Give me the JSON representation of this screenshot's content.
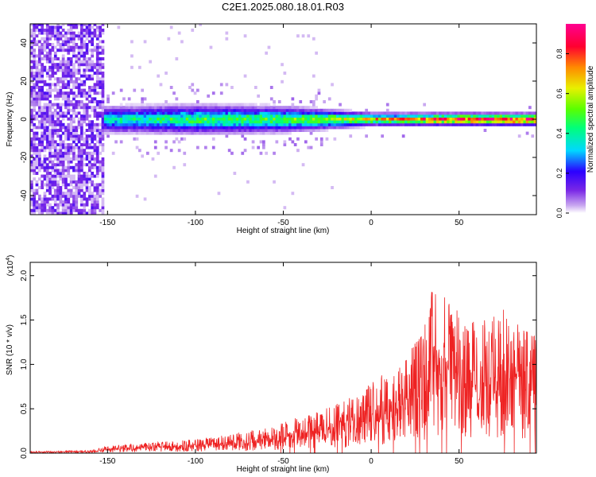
{
  "figure": {
    "title": "C2E1.2025.080.18.01.R03"
  },
  "chart_data": [
    {
      "type": "heatmap",
      "xlabel": "Height of straight line (km)",
      "ylabel": "Frequency (Hz)",
      "xlim": [
        -194,
        94
      ],
      "ylim": [
        -50,
        50
      ],
      "xticks": [
        -150,
        -100,
        -50,
        0,
        50
      ],
      "yticks": [
        -40,
        -20,
        0,
        20,
        40
      ],
      "colorbar": {
        "label": "Normalized spectral amplitude",
        "range": [
          0,
          0.95
        ],
        "ticks": [
          0.0,
          0.2,
          0.4,
          0.6,
          0.8
        ],
        "colors": [
          "#ffffff",
          "#c9a8f0",
          "#7a28e6",
          "#2b00ff",
          "#00d8ff",
          "#00ff7a",
          "#5aff00",
          "#e8f000",
          "#ff8a00",
          "#ff0030",
          "#ff0090"
        ]
      },
      "features": {
        "noise_region_x": [
          -194,
          -152
        ],
        "band_center_hz": 0,
        "band_halfwidth_hz_at": [
          [
            -150,
            8
          ],
          [
            -100,
            9
          ],
          [
            -50,
            8
          ],
          [
            0,
            4
          ],
          [
            90,
            4
          ]
        ],
        "peak_amplitude_at": [
          [
            -150,
            0.25
          ],
          [
            -100,
            0.35
          ],
          [
            -50,
            0.4
          ],
          [
            0,
            0.6
          ],
          [
            50,
            0.9
          ],
          [
            90,
            0.9
          ]
        ]
      },
      "grid": false
    },
    {
      "type": "line",
      "xlabel": "Height of straight line (km)",
      "ylabel": "SNR (10 * v/v)",
      "y_multiplier": "(x10",
      "y_multiplier_exp": "4",
      "y_multiplier_close": ")",
      "xlim": [
        -194,
        94
      ],
      "ylim": [
        0,
        2.15
      ],
      "xticks": [
        -150,
        -100,
        -50,
        0,
        50
      ],
      "yticks": [
        "0.0",
        "0.5",
        "1.0",
        "1.5",
        "2.0"
      ],
      "ytick_values": [
        0.0,
        0.5,
        1.0,
        1.5,
        2.0
      ],
      "series": [
        {
          "color": "#ee2222",
          "envelope": [
            [
              -194,
              0.02
            ],
            [
              -160,
              0.03
            ],
            [
              -150,
              0.08
            ],
            [
              -130,
              0.12
            ],
            [
              -110,
              0.14
            ],
            [
              -90,
              0.18
            ],
            [
              -70,
              0.25
            ],
            [
              -50,
              0.35
            ],
            [
              -35,
              0.45
            ],
            [
              -20,
              0.55
            ],
            [
              -10,
              0.65
            ],
            [
              0,
              0.8
            ],
            [
              10,
              0.95
            ],
            [
              20,
              1.1
            ],
            [
              30,
              1.4
            ],
            [
              35,
              1.9
            ],
            [
              40,
              1.8
            ],
            [
              50,
              1.6
            ],
            [
              60,
              1.5
            ],
            [
              70,
              1.6
            ],
            [
              80,
              1.7
            ],
            [
              94,
              1.3
            ]
          ]
        }
      ],
      "grid": false
    }
  ]
}
